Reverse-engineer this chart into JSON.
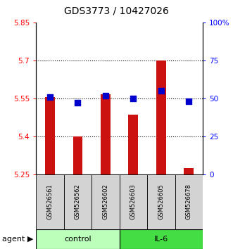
{
  "title": "GDS3773 / 10427026",
  "samples": [
    "GSM526561",
    "GSM526562",
    "GSM526602",
    "GSM526603",
    "GSM526605",
    "GSM526678"
  ],
  "bar_values": [
    5.555,
    5.4,
    5.565,
    5.485,
    5.7,
    5.275
  ],
  "percentile_values": [
    51,
    47,
    52,
    50,
    55,
    48
  ],
  "bar_color": "#CC1111",
  "dot_color": "#0000CC",
  "ymin": 5.25,
  "ymax": 5.85,
  "y_ticks": [
    5.25,
    5.4,
    5.55,
    5.7,
    5.85
  ],
  "y_tick_labels": [
    "5.25",
    "5.4",
    "5.55",
    "5.7",
    "5.85"
  ],
  "y2min": 0,
  "y2max": 100,
  "y2_ticks": [
    0,
    25,
    50,
    75,
    100
  ],
  "y2_tick_labels": [
    "0",
    "25",
    "50",
    "75",
    "100%"
  ],
  "grid_lines": [
    5.4,
    5.55,
    5.7
  ],
  "groups": [
    {
      "label": "control",
      "indices": [
        0,
        1,
        2
      ],
      "color": "#BBFFBB"
    },
    {
      "label": "IL-6",
      "indices": [
        3,
        4,
        5
      ],
      "color": "#44DD44"
    }
  ],
  "bar_width": 0.35,
  "title_fontsize": 10,
  "tick_fontsize": 7.5,
  "sample_fontsize": 6,
  "agent_fontsize": 8,
  "legend_fontsize": 6.5
}
